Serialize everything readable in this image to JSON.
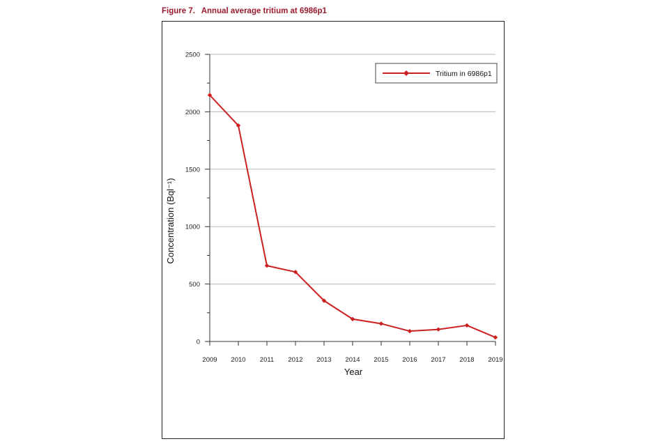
{
  "caption": {
    "number": "Figure 7.",
    "text": "Annual average tritium at 6986p1"
  },
  "colors": {
    "caption": "#9b1b30",
    "series": "#cc1f1f",
    "grid": "#b5b5b5",
    "axis": "#333333"
  },
  "chart_data": {
    "type": "line",
    "title": "Annual average tritium at 6986p1",
    "xlabel": "Year",
    "ylabel": "Concentration (Bql⁻¹)",
    "x": [
      2009,
      2010,
      2011,
      2012,
      2013,
      2014,
      2015,
      2016,
      2017,
      2018,
      2019
    ],
    "xticks": [
      "2009",
      "2010",
      "2011",
      "2012",
      "2013",
      "2014",
      "2015",
      "2016",
      "2017",
      "2018",
      "2019"
    ],
    "ylim": [
      0,
      2500
    ],
    "yticks": [
      0,
      500,
      1000,
      1500,
      2000,
      2500
    ],
    "grid": true,
    "legend_position": "top-right",
    "series": [
      {
        "name": "Tritium in 6986p1",
        "marker": "diamond",
        "values": [
          2145,
          1880,
          660,
          605,
          355,
          195,
          155,
          90,
          105,
          140,
          35
        ]
      }
    ]
  }
}
